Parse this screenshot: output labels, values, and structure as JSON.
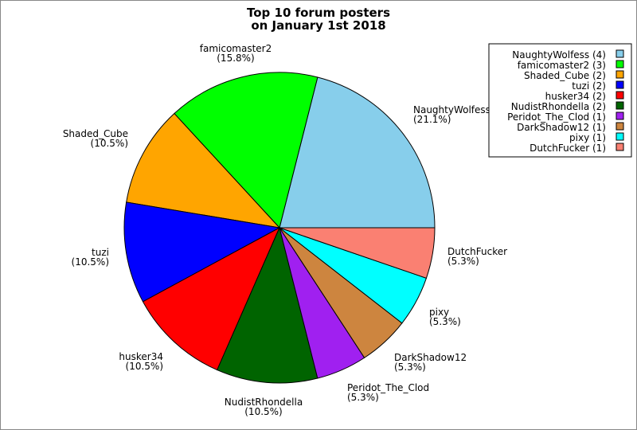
{
  "chart_data": {
    "type": "pie",
    "title": [
      "Top 10 forum posters",
      "on January 1st 2018"
    ],
    "slices": [
      {
        "label": "NaughtyWolfess",
        "value": 4,
        "percent": "21.1%",
        "color": "#87ceeb"
      },
      {
        "label": "famicomaster2",
        "value": 3,
        "percent": "15.8%",
        "color": "#00ff00"
      },
      {
        "label": "Shaded_Cube",
        "value": 2,
        "percent": "10.5%",
        "color": "#ffa500"
      },
      {
        "label": "tuzi",
        "value": 2,
        "percent": "10.5%",
        "color": "#0000ff"
      },
      {
        "label": "husker34",
        "value": 2,
        "percent": "10.5%",
        "color": "#ff0000"
      },
      {
        "label": "NudistRhondella",
        "value": 2,
        "percent": "10.5%",
        "color": "#006400"
      },
      {
        "label": "Peridot_The_Clod",
        "value": 1,
        "percent": "5.3%",
        "color": "#a020f0"
      },
      {
        "label": "DarkShadow12",
        "value": 1,
        "percent": "5.3%",
        "color": "#cd853f"
      },
      {
        "label": "pixy",
        "value": 1,
        "percent": "5.3%",
        "color": "#00ffff"
      },
      {
        "label": "DutchFucker",
        "value": 1,
        "percent": "5.3%",
        "color": "#fa8072"
      }
    ],
    "legend": {
      "placement": "top-right",
      "entries": [
        "NaughtyWolfess (4)",
        "famicomaster2 (3)",
        "Shaded_Cube (2)",
        "tuzi (2)",
        "husker34 (2)",
        "NudistRhondella (2)",
        "Peridot_The_Clod (1)",
        "DarkShadow12 (1)",
        "pixy (1)",
        "DutchFucker (1)"
      ]
    },
    "start_angle": "east",
    "direction": "counterclockwise"
  }
}
